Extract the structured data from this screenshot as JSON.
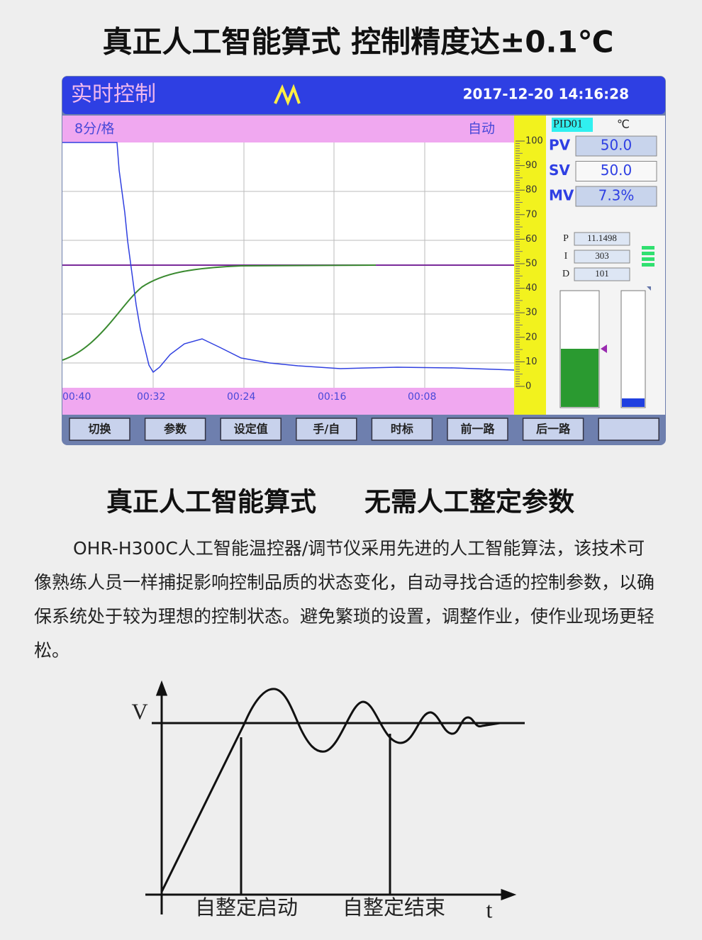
{
  "header": {
    "title": "真正人工智能算式  控制精度达±0.1℃"
  },
  "screen": {
    "title": "实时控制",
    "datetime": "2017-12-20 14:16:28",
    "interval": "8分/格",
    "mode": "自动",
    "time_labels": [
      "00:40",
      "00:32",
      "00:24",
      "00:16",
      "00:08"
    ],
    "scale": [
      "100",
      "90",
      "80",
      "70",
      "60",
      "50",
      "40",
      "30",
      "20",
      "10",
      "0"
    ],
    "loop": "PID01",
    "unit": "℃",
    "readouts": [
      {
        "label": "PV",
        "value": "50.0"
      },
      {
        "label": "SV",
        "value": "50.0"
      },
      {
        "label": "MV",
        "value": "7.3%"
      }
    ],
    "params": [
      {
        "label": "P",
        "value": "11.1498"
      },
      {
        "label": "I",
        "value": "303"
      },
      {
        "label": "D",
        "value": "101"
      }
    ],
    "buttons": [
      "切换",
      "参数",
      "设定值",
      "手/自",
      "时标",
      "前一路",
      "后一路"
    ]
  },
  "section": {
    "title": [
      "真正人工智能算式",
      "无需人工整定参数"
    ],
    "body": "OHR-H300C人工智能温控器/调节仪采用先进的人工智能算法，该技术可像熟练人员一样捕捉影响控制品质的状态变化，自动寻找合适的控制参数，以确保系统处于较为理想的控制状态。避免繁琐的设置，调整作业，使作业现场更轻松。"
  },
  "diagram": {
    "y_label": "V",
    "x_label": "t",
    "markers": [
      "自整定启动",
      "自整定结束"
    ]
  }
}
